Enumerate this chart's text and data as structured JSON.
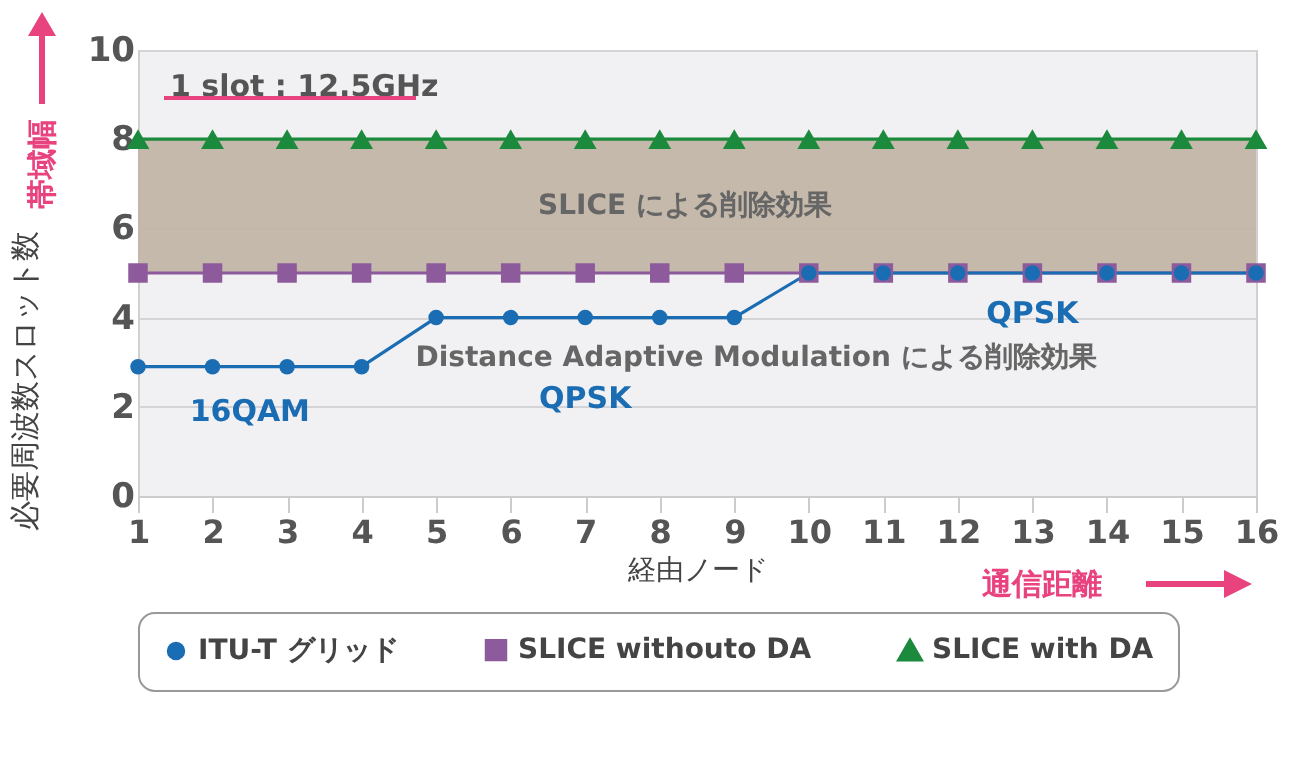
{
  "chart_data": {
    "type": "line",
    "xlabel": "経由ノード",
    "ylabel": "必要周波数スロット数",
    "x": [
      1,
      2,
      3,
      4,
      5,
      6,
      7,
      8,
      9,
      10,
      11,
      12,
      13,
      14,
      15,
      16
    ],
    "series": [
      {
        "name": "ITU-T グリッド",
        "color": "#1b6db3",
        "marker": "circle",
        "values": [
          2.9,
          2.9,
          2.9,
          2.9,
          4,
          4,
          4,
          4,
          4,
          5,
          5,
          5,
          5,
          5,
          5,
          5
        ]
      },
      {
        "name": "SLICE withouto DA",
        "color": "#8d5a9c",
        "marker": "square",
        "values": [
          5,
          5,
          5,
          5,
          5,
          5,
          5,
          5,
          5,
          5,
          5,
          5,
          5,
          5,
          5,
          5
        ]
      },
      {
        "name": "SLICE with DA",
        "color": "#1b8a3c",
        "marker": "triangle",
        "values": [
          8,
          8,
          8,
          8,
          8,
          8,
          8,
          8,
          8,
          8,
          8,
          8,
          8,
          8,
          8,
          8
        ]
      }
    ],
    "xlim": [
      1,
      16
    ],
    "xticks": [
      1,
      2,
      3,
      4,
      5,
      6,
      7,
      8,
      9,
      10,
      11,
      12,
      13,
      14,
      15,
      16
    ],
    "ylim": [
      0,
      10
    ],
    "yticks": [
      0,
      2,
      4,
      6,
      8,
      10
    ],
    "grid": "y",
    "legend": "bottom",
    "line_style": "solid",
    "bands": [
      {
        "axis": "y",
        "from": 5,
        "to": 8,
        "label": "SLICE による削除効果",
        "color": "#c2b5a6"
      }
    ],
    "annotations": [
      "1 slot : 12.5GHz",
      "帯域幅",
      "通信距離",
      "Distance Adaptive Modulation による削除効果",
      {
        "text": "16QAM",
        "x": 2.5,
        "y": 2.9
      },
      {
        "text": "QPSK",
        "x": 7,
        "y": 4
      },
      {
        "text": "QPSK",
        "x": 13,
        "y": 5
      }
    ]
  }
}
